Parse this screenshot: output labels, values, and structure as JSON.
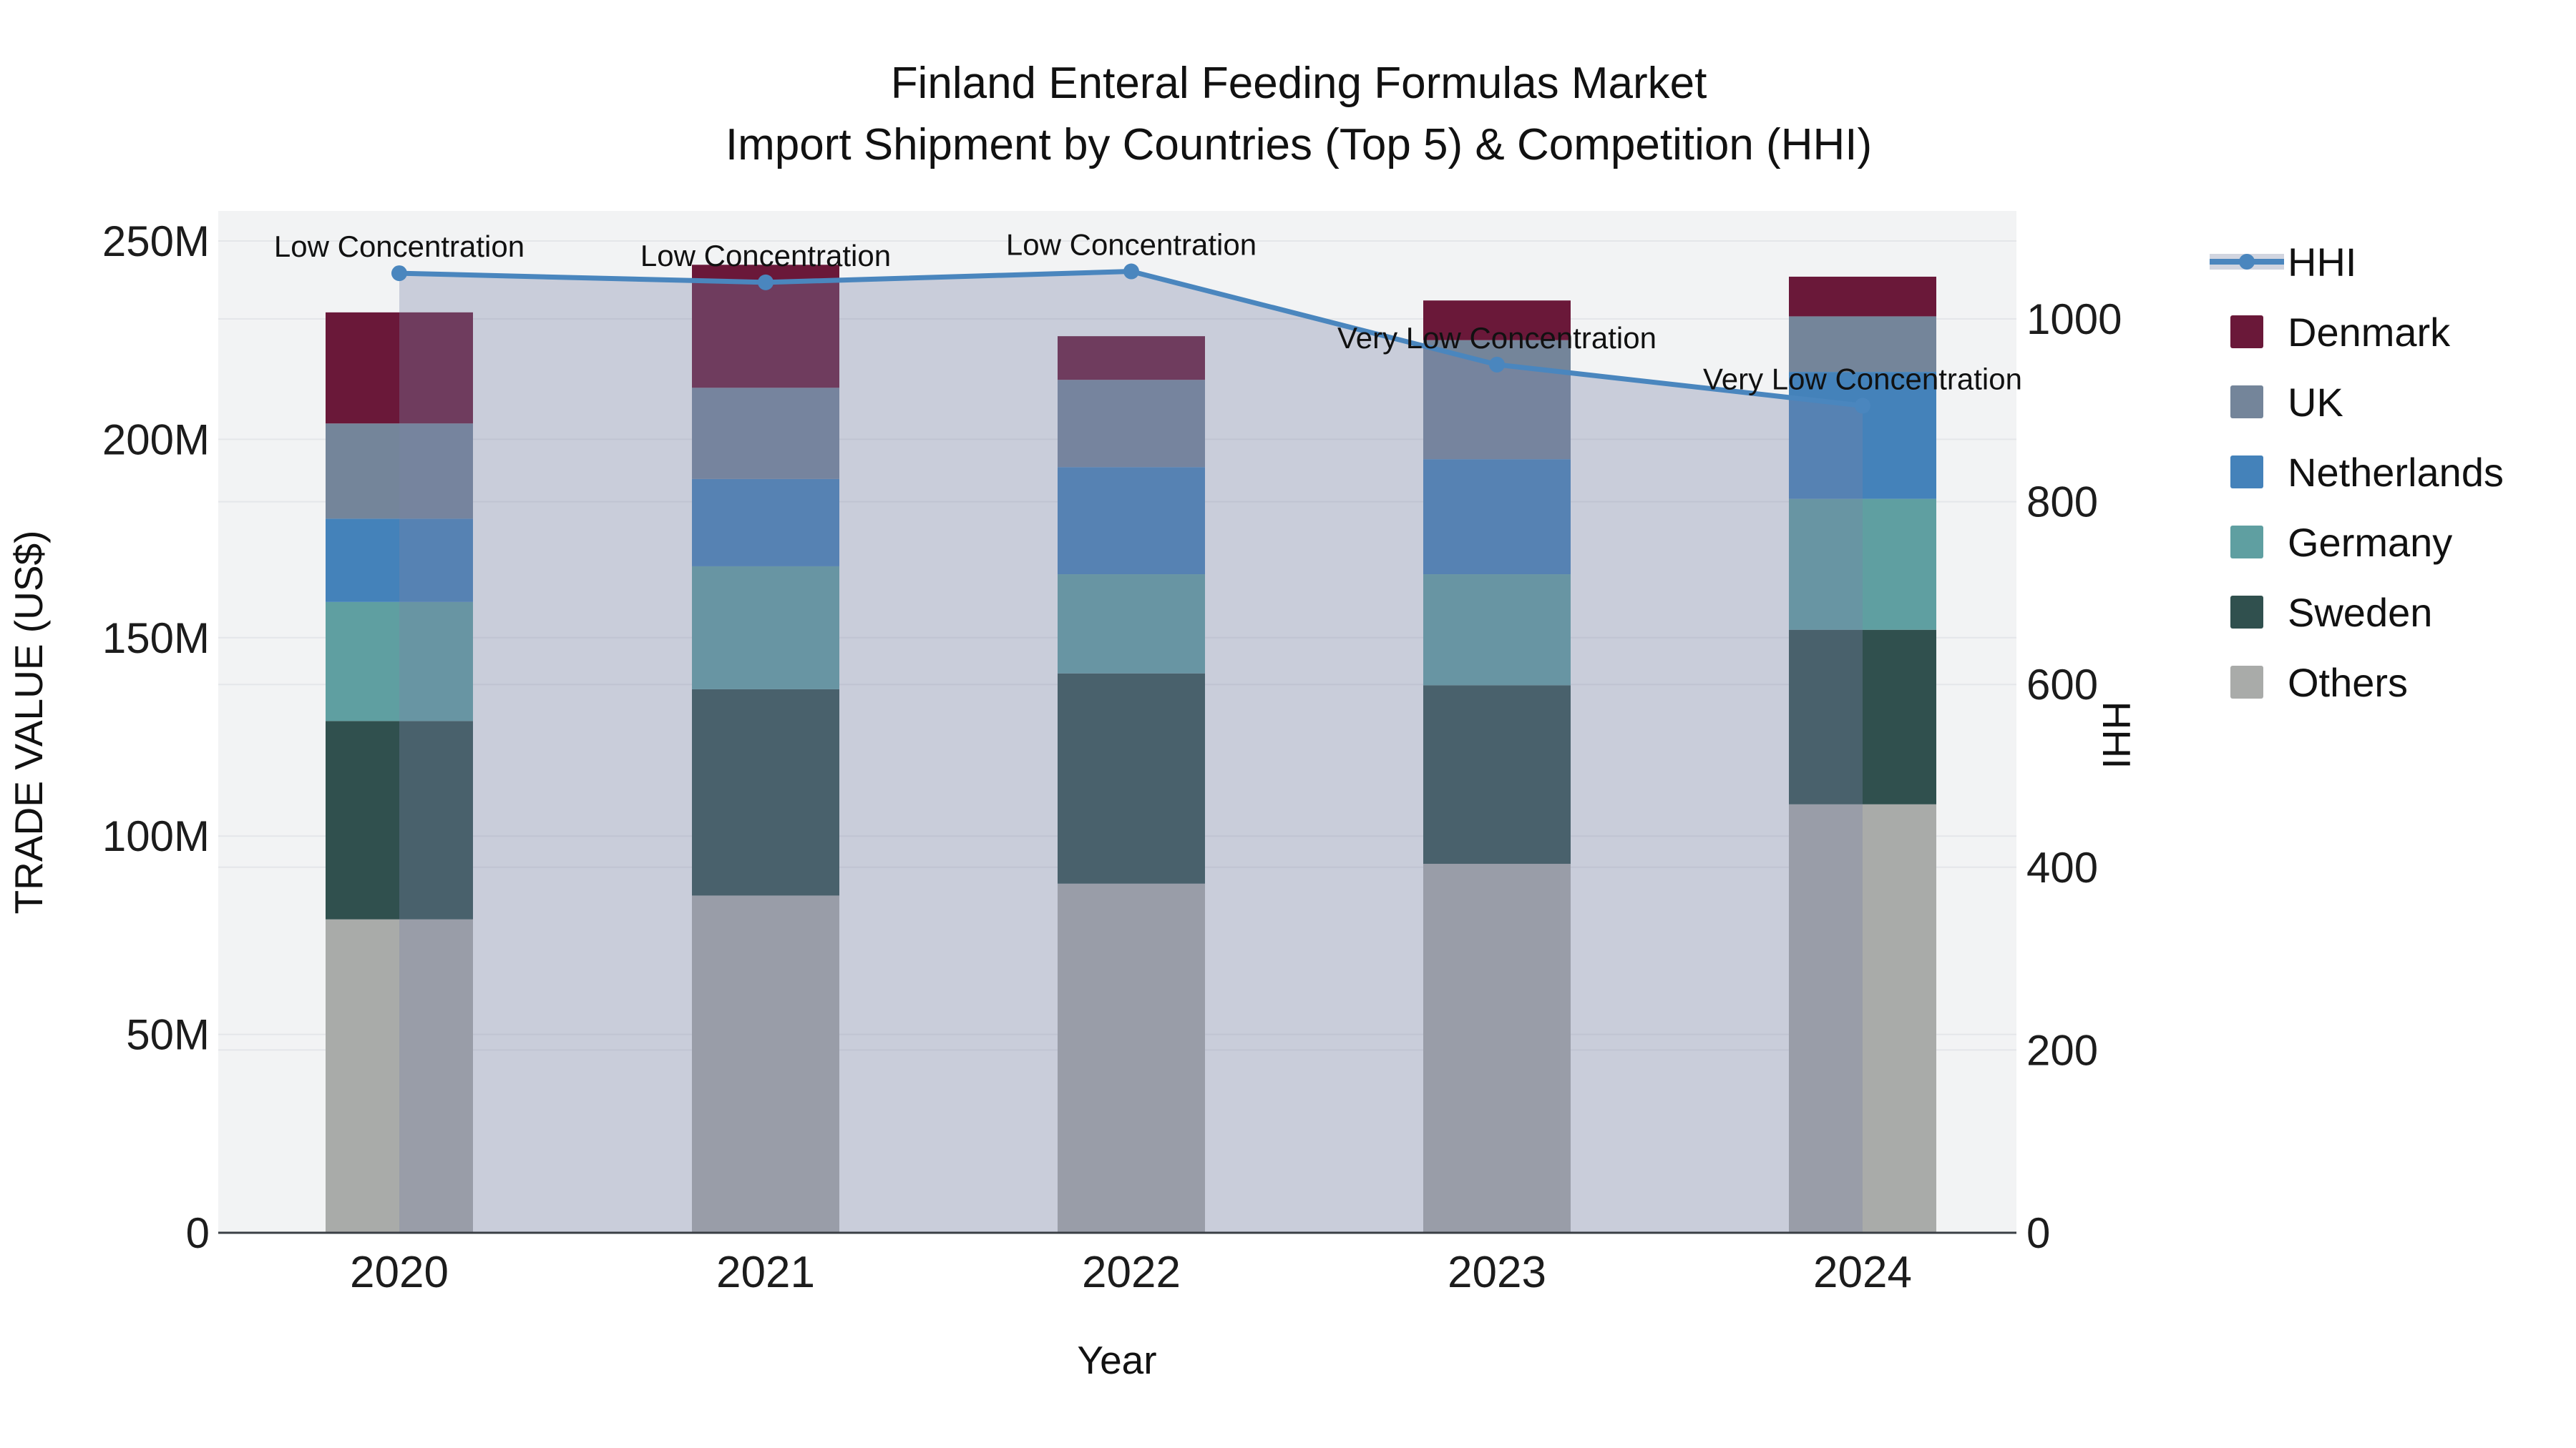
{
  "title": {
    "line1": "Finland Enteral Feeding Formulas Market",
    "line2": "Import Shipment by Countries (Top 5) & Competition (HHI)"
  },
  "axes": {
    "x_title": "Year",
    "y_left_title": "TRADE VALUE (US$)",
    "y_right_title": "HHI",
    "y_left_ticks": [
      {
        "value": 0,
        "label": "0"
      },
      {
        "value": 50,
        "label": "50M"
      },
      {
        "value": 100,
        "label": "100M"
      },
      {
        "value": 150,
        "label": "150M"
      },
      {
        "value": 200,
        "label": "200M"
      },
      {
        "value": 250,
        "label": "250M"
      }
    ],
    "y_right_ticks": [
      {
        "value": 0,
        "label": "0"
      },
      {
        "value": 200,
        "label": "200"
      },
      {
        "value": 400,
        "label": "400"
      },
      {
        "value": 600,
        "label": "600"
      },
      {
        "value": 800,
        "label": "800"
      },
      {
        "value": 1000,
        "label": "1000"
      }
    ]
  },
  "legend": {
    "items": [
      {
        "label": "HHI",
        "type": "line",
        "color": "#4A86BE",
        "band": "#D1D5E0"
      },
      {
        "label": "Denmark",
        "type": "square",
        "color": "#6A1839"
      },
      {
        "label": "UK",
        "type": "square",
        "color": "#74859A"
      },
      {
        "label": "Netherlands",
        "type": "square",
        "color": "#4482BA"
      },
      {
        "label": "Germany",
        "type": "square",
        "color": "#5F9FA1"
      },
      {
        "label": "Sweden",
        "type": "square",
        "color": "#30504E"
      },
      {
        "label": "Others",
        "type": "square",
        "color": "#A9ABA9"
      }
    ]
  },
  "chart_data": {
    "type": "bar+line",
    "title": "Finland Enteral Feeding Formulas Market — Import Shipment by Countries (Top 5) & Competition (HHI)",
    "categories": [
      "2020",
      "2021",
      "2022",
      "2023",
      "2024"
    ],
    "units_left": "Million US$",
    "xlabel": "Year",
    "ylabel_left": "TRADE VALUE (US$)",
    "ylabel_right": "HHI",
    "ylim_left": [
      0,
      257
    ],
    "ylim_right": [
      0,
      1118
    ],
    "grid": true,
    "legend_position": "right",
    "stack_order": [
      "Others",
      "Sweden",
      "Germany",
      "Netherlands",
      "UK",
      "Denmark"
    ],
    "series": [
      {
        "name": "Denmark",
        "color": "#6A1839",
        "values": [
          28,
          31,
          11,
          10,
          10
        ]
      },
      {
        "name": "UK",
        "color": "#74859A",
        "values": [
          24,
          23,
          22,
          30,
          14
        ]
      },
      {
        "name": "Netherlands",
        "color": "#4482BA",
        "values": [
          21,
          22,
          27,
          29,
          32
        ]
      },
      {
        "name": "Germany",
        "color": "#5F9FA1",
        "values": [
          30,
          31,
          25,
          28,
          33
        ]
      },
      {
        "name": "Sweden",
        "color": "#30504E",
        "values": [
          50,
          52,
          53,
          45,
          44
        ]
      },
      {
        "name": "Others",
        "color": "#A9ABA9",
        "values": [
          79,
          85,
          88,
          93,
          108
        ]
      }
    ],
    "bar_totals": [
      232,
      244,
      226,
      235,
      241
    ],
    "line_series": {
      "name": "HHI",
      "axis": "right",
      "color": "#4A86BE",
      "area_fill": "rgba(122,133,166,0.34)",
      "values": [
        1050,
        1040,
        1052,
        950,
        905
      ]
    },
    "annotations": [
      {
        "category": "2020",
        "text": "Low Concentration"
      },
      {
        "category": "2021",
        "text": "Low Concentration"
      },
      {
        "category": "2022",
        "text": "Low Concentration"
      },
      {
        "category": "2023",
        "text": "Very Low Concentration"
      },
      {
        "category": "2024",
        "text": "Very Low Concentration"
      }
    ]
  },
  "style": {
    "plot_bg": "#F2F3F4",
    "grid_color": "#E4E6E9",
    "axis_line_color": "#3A3F45",
    "text_color": "#1c1c1c"
  }
}
